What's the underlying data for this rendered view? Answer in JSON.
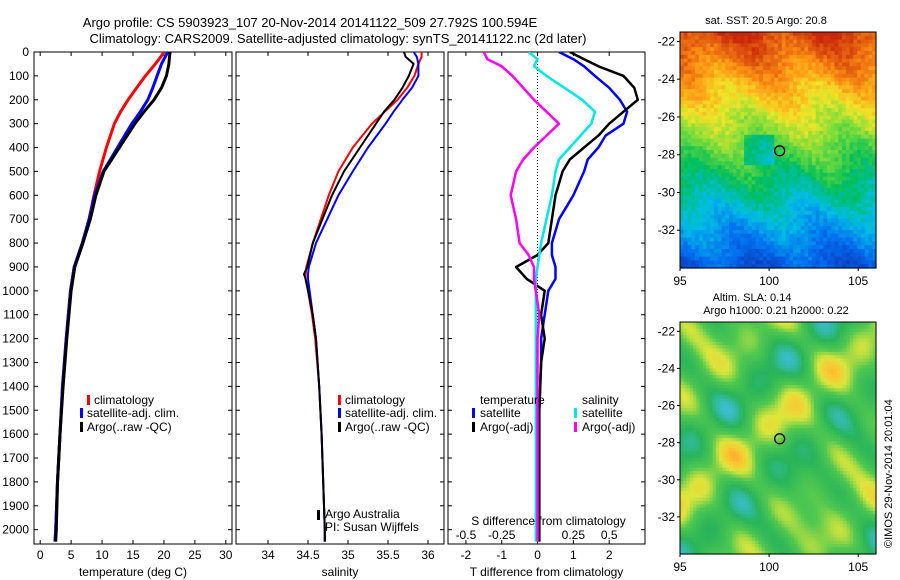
{
  "header": {
    "line1": "Argo profile: CS 5903923_107 20-Nov-2014 20141122_509 27.792S 100.594E",
    "line2": "Climatology: CARS2009. Satellite-adjusted climatology: synTS_20141122.nc (2d later)"
  },
  "depth_ticks": [
    "0",
    "100",
    "200",
    "300",
    "400",
    "500",
    "600",
    "700",
    "800",
    "900",
    "1000",
    "1100",
    "1200",
    "1300",
    "1400",
    "1500",
    "1600",
    "1700",
    "1800",
    "1900",
    "2000"
  ],
  "colors": {
    "red": "#ff0000",
    "blue": "#0000ff",
    "black": "#000000",
    "cyan": "#00e5e5",
    "magenta": "#ff00ff"
  },
  "legend_profiles": [
    "climatology",
    "satellite-adj. clim.",
    "Argo(..raw -QC)"
  ],
  "legend_diff": {
    "temperature_title": "temperature",
    "salinity_title": "salinity",
    "items": [
      "satellite",
      "Argo(-adj)",
      "satellite",
      "Argo(-adj)"
    ]
  },
  "credits": {
    "line1": "Argo Australia",
    "line2": "PI: Susan Wijffels"
  },
  "sst_title": "sat. SST: 20.5 Argo: 20.8",
  "sla_title1": "Altim. SLA: 0.14",
  "sla_title2": "Argo h1000: 0.21 h2000: 0.22",
  "map_yticks": [
    "-22",
    "-24",
    "-26",
    "-28",
    "-30",
    "-32"
  ],
  "map_xticks": [
    "95",
    "100",
    "105"
  ],
  "stamp": "©IMOS 29-Nov-2014 20:01:04",
  "chart_data": [
    {
      "type": "line",
      "xlabel": "temperature (deg C)",
      "xlim": [
        -1,
        31
      ],
      "ylim": [
        0,
        2060
      ],
      "y_reversed": true,
      "xticks": [
        "0",
        "5",
        "10",
        "15",
        "20",
        "25",
        "30"
      ],
      "depth": [
        0,
        20,
        50,
        100,
        150,
        200,
        250,
        300,
        400,
        500,
        600,
        700,
        800,
        900,
        1000,
        1200,
        1400,
        1600,
        1800,
        2000,
        2050
      ],
      "series": [
        {
          "name": "climatology",
          "color": "red",
          "values": [
            20.0,
            19.5,
            18.6,
            17.0,
            15.6,
            14.2,
            13.0,
            12.0,
            10.7,
            9.6,
            8.7,
            7.9,
            6.8,
            5.5,
            4.9,
            4.2,
            3.6,
            3.2,
            2.8,
            2.5,
            2.4
          ]
        },
        {
          "name": "satellite-adj. clim.",
          "color": "blue",
          "values": [
            20.6,
            20.2,
            19.6,
            18.9,
            18.2,
            17.4,
            16.2,
            14.8,
            12.5,
            10.2,
            8.8,
            7.9,
            6.8,
            5.5,
            4.9,
            4.2,
            3.6,
            3.2,
            2.8,
            2.5,
            2.4
          ]
        },
        {
          "name": "Argo(..raw -QC)",
          "color": "black",
          "values": [
            21.0,
            20.9,
            20.8,
            20.4,
            19.6,
            18.4,
            16.8,
            15.3,
            12.8,
            10.3,
            9.0,
            8.1,
            6.9,
            5.6,
            5.0,
            4.3,
            3.7,
            3.2,
            2.8,
            2.6,
            2.5
          ]
        }
      ]
    },
    {
      "type": "line",
      "xlabel": "salinity",
      "xlim": [
        33.6,
        36.2
      ],
      "ylim": [
        0,
        2060
      ],
      "y_reversed": true,
      "xticks": [
        "34",
        "34.5",
        "35",
        "35.5",
        "36"
      ],
      "depth": [
        0,
        20,
        50,
        100,
        150,
        200,
        250,
        300,
        400,
        500,
        600,
        700,
        800,
        900,
        930,
        950,
        1000,
        1100,
        1200,
        1400,
        1600,
        1800,
        2000,
        2050
      ],
      "series": [
        {
          "name": "climatology",
          "color": "red",
          "values": [
            35.92,
            35.92,
            35.88,
            35.83,
            35.74,
            35.62,
            35.46,
            35.3,
            35.06,
            34.88,
            34.76,
            34.66,
            34.56,
            34.48,
            34.47,
            34.47,
            34.5,
            34.55,
            34.59,
            34.64,
            34.67,
            34.69,
            34.71,
            34.71
          ]
        },
        {
          "name": "satellite-adj. clim.",
          "color": "blue",
          "values": [
            35.82,
            35.86,
            35.88,
            35.88,
            35.8,
            35.68,
            35.57,
            35.47,
            35.25,
            35.06,
            34.88,
            34.74,
            34.6,
            34.51,
            34.5,
            34.5,
            34.52,
            34.56,
            34.6,
            34.64,
            34.67,
            34.69,
            34.71,
            34.71
          ]
        },
        {
          "name": "Argo(..raw -QC)",
          "color": "black",
          "values": [
            35.7,
            35.72,
            35.82,
            35.76,
            35.68,
            35.58,
            35.45,
            35.35,
            35.15,
            34.95,
            34.8,
            34.68,
            34.56,
            34.49,
            34.45,
            34.47,
            34.5,
            34.56,
            34.6,
            34.64,
            34.67,
            34.69,
            34.71,
            34.71
          ]
        }
      ]
    },
    {
      "type": "line",
      "xlabel": "T difference from climatology",
      "top_label": "S difference from climatology",
      "xlim": [
        -2.5,
        3.0
      ],
      "ylim": [
        0,
        2060
      ],
      "y_reversed": true,
      "xticks": [
        "-2",
        "-1",
        "0",
        "1",
        "2"
      ],
      "top_ticks": [
        "-0.5",
        "-0.25",
        "0",
        "0.25",
        "0.5"
      ],
      "depth": [
        0,
        30,
        60,
        100,
        150,
        200,
        250,
        300,
        350,
        400,
        450,
        500,
        600,
        700,
        800,
        850,
        900,
        950,
        1000,
        1100,
        1200,
        1300,
        1500,
        1800,
        2000,
        2050
      ],
      "series": [
        {
          "name": "temperature satellite",
          "color": "blue",
          "values": [
            0.6,
            1.0,
            1.3,
            1.6,
            2.0,
            2.3,
            2.5,
            2.4,
            1.9,
            1.7,
            1.4,
            1.3,
            1.0,
            0.6,
            0.4,
            0.4,
            0.5,
            0.5,
            0.3,
            0.2,
            0.1,
            0.1,
            0.05,
            0.05,
            0.05,
            0.05
          ]
        },
        {
          "name": "temperature Argo(-adj)",
          "color": "black",
          "values": [
            0.9,
            1.3,
            1.7,
            2.4,
            2.7,
            2.8,
            2.4,
            2.0,
            1.7,
            1.3,
            0.9,
            0.7,
            0.5,
            0.4,
            0.3,
            0.0,
            -0.6,
            -0.3,
            0.2,
            0.1,
            0.2,
            0.1,
            0.05,
            0.05,
            0.05,
            0.05
          ]
        },
        {
          "name": "salinity satellite",
          "color": "cyan",
          "values": [
            -0.05,
            0.0,
            -0.02,
            0.05,
            0.15,
            0.25,
            0.32,
            0.3,
            0.24,
            0.18,
            0.12,
            0.1,
            0.08,
            0.05,
            0.02,
            0.01,
            0.0,
            -0.01,
            -0.01,
            -0.01,
            -0.01,
            -0.01,
            -0.01,
            -0.01,
            -0.01,
            -0.01
          ]
        },
        {
          "name": "salinity Argo(-adj)",
          "color": "magenta",
          "values": [
            -0.3,
            -0.28,
            -0.2,
            -0.14,
            -0.08,
            -0.02,
            0.05,
            0.12,
            0.05,
            -0.02,
            -0.08,
            -0.12,
            -0.15,
            -0.12,
            -0.1,
            -0.05,
            -0.02,
            -0.02,
            -0.01,
            0.01,
            0.0,
            0.0,
            0.0,
            0.0,
            0.0,
            0.0
          ]
        }
      ]
    },
    {
      "type": "heatmap",
      "title": "sat. SST: 20.5 Argo: 20.8",
      "xlim": [
        95,
        106
      ],
      "ylim": [
        -34,
        -21.5
      ],
      "marker": [
        100.594,
        -27.792
      ]
    },
    {
      "type": "heatmap",
      "title": "Altim. SLA: 0.14 / Argo h1000: 0.21 h2000: 0.22",
      "xlim": [
        95,
        106
      ],
      "ylim": [
        -34,
        -21.5
      ],
      "marker": [
        100.594,
        -27.792
      ]
    }
  ]
}
